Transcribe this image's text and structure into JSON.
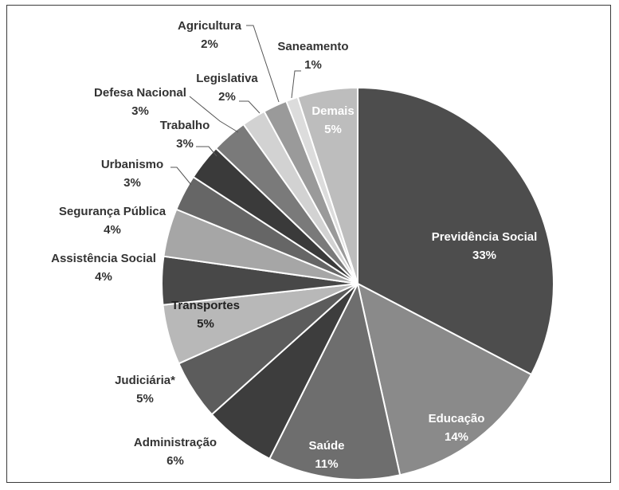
{
  "chart_data": {
    "type": "pie",
    "slices": [
      {
        "name": "Previdência Social",
        "value": 33,
        "label": "33%",
        "color": "#4d4d4d"
      },
      {
        "name": "Educação",
        "value": 14,
        "label": "14%",
        "color": "#8a8a8a"
      },
      {
        "name": "Saúde",
        "value": 11,
        "label": "11%",
        "color": "#6e6e6e"
      },
      {
        "name": "Administração",
        "value": 6,
        "label": "6%",
        "color": "#3d3d3d"
      },
      {
        "name": "Judiciária*",
        "value": 5,
        "label": "5%",
        "color": "#5c5c5c"
      },
      {
        "name": "Transportes",
        "value": 5,
        "label": "5%",
        "color": "#b8b8b8"
      },
      {
        "name": "Assistência Social",
        "value": 4,
        "label": "4%",
        "color": "#484848"
      },
      {
        "name": "Segurança Pública",
        "value": 4,
        "label": "4%",
        "color": "#a6a6a6"
      },
      {
        "name": "Urbanismo",
        "value": 3,
        "label": "3%",
        "color": "#666666"
      },
      {
        "name": "Trabalho",
        "value": 3,
        "label": "3%",
        "color": "#3a3a3a"
      },
      {
        "name": "Defesa Nacional",
        "value": 3,
        "label": "3%",
        "color": "#7a7a7a"
      },
      {
        "name": "Legislativa",
        "value": 2,
        "label": "2%",
        "color": "#d2d2d2"
      },
      {
        "name": "Agricultura",
        "value": 2,
        "label": "2%",
        "color": "#9a9a9a"
      },
      {
        "name": "Saneamento",
        "value": 1,
        "label": "1%",
        "color": "#dcdcdc"
      },
      {
        "name": "Demais",
        "value": 5,
        "label": "5%",
        "color": "#bdbdbd"
      }
    ],
    "start_angle": "12 o'clock",
    "direction": "clockwise",
    "legend": "none"
  }
}
